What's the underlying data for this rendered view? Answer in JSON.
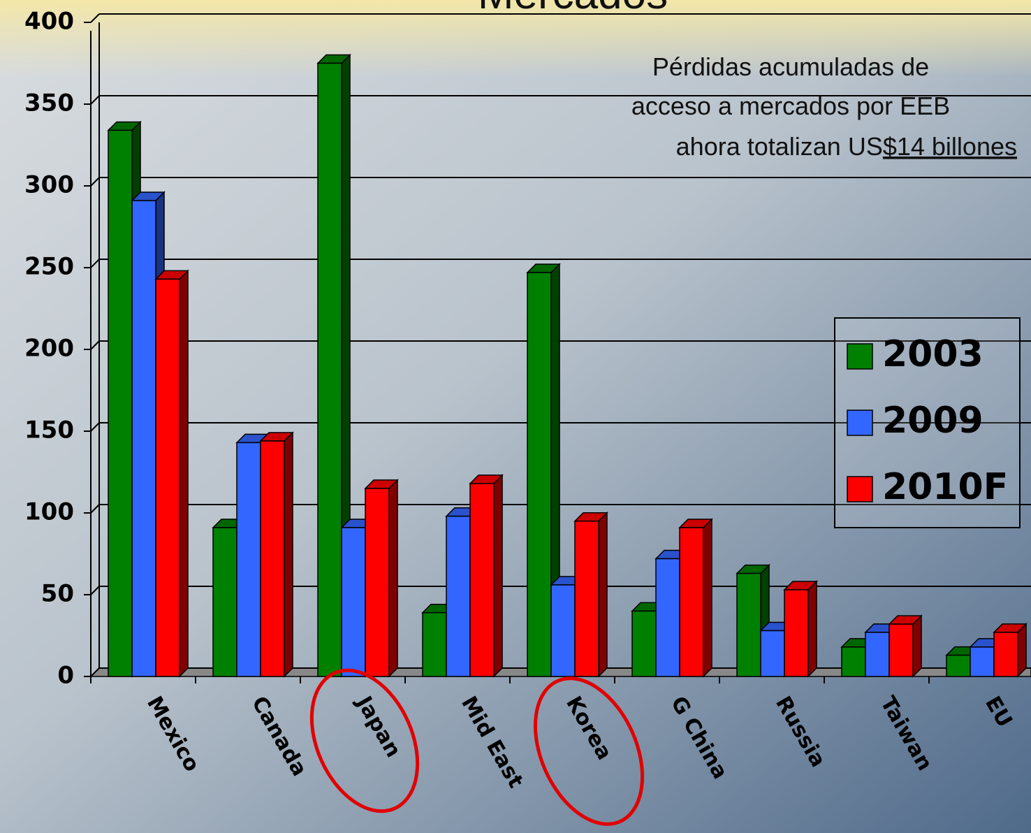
{
  "chart_data": {
    "type": "bar3d",
    "title": "Mercados",
    "annotation": [
      "Pérdidas acumuladas de",
      "acceso a mercados por EEB",
      "ahora totalizan US",
      "$14 billones"
    ],
    "categories": [
      "Mexico",
      "Canada",
      "Japan",
      "Mid East",
      "Korea",
      "G China",
      "Russia",
      "Taiwan",
      "EU"
    ],
    "series": [
      {
        "name": "2003",
        "color": "#008000",
        "values": [
          334,
          91,
          375,
          39,
          247,
          40,
          63,
          18,
          13
        ]
      },
      {
        "name": "2009",
        "color": "#3366ff",
        "values": [
          291,
          143,
          91,
          98,
          56,
          72,
          28,
          27,
          18
        ]
      },
      {
        "name": "2010F",
        "color": "#ff0000",
        "values": [
          243,
          144,
          115,
          118,
          95,
          91,
          53,
          32,
          27
        ]
      }
    ],
    "ylim": [
      0,
      400
    ],
    "yticks": [
      0,
      50,
      100,
      150,
      200,
      250,
      300,
      350,
      400
    ],
    "grid": true,
    "legend": "right"
  }
}
